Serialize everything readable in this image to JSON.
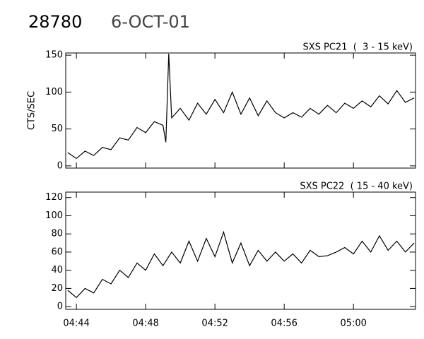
{
  "header": {
    "id": "28780",
    "date": "6-OCT-01"
  },
  "chart_data": [
    {
      "type": "line",
      "ylabel": "CTS/SEC",
      "x": [
        "04:43:30",
        "04:44:00",
        "04:44:30",
        "04:45:00",
        "04:45:30",
        "04:46:00",
        "04:46:30",
        "04:47:00",
        "04:47:30",
        "04:48:00",
        "04:48:30",
        "04:49:00",
        "04:49:10",
        "04:49:20",
        "04:49:30",
        "04:50:00",
        "04:50:30",
        "04:51:00",
        "04:51:30",
        "04:52:00",
        "04:52:30",
        "04:53:00",
        "04:53:30",
        "04:54:00",
        "04:54:30",
        "04:55:00",
        "04:55:30",
        "04:56:00",
        "04:56:30",
        "04:57:00",
        "04:57:30",
        "04:58:00",
        "04:58:30",
        "04:59:00",
        "04:59:30",
        "05:00:00",
        "05:00:30",
        "05:01:00",
        "05:01:30",
        "05:02:00",
        "05:02:30",
        "05:03:00",
        "05:03:30"
      ],
      "series": [
        {
          "name": "SXS PC21  (  3 - 15 keV)",
          "color": "#000000",
          "values": [
            18,
            10,
            20,
            14,
            25,
            22,
            38,
            35,
            52,
            45,
            60,
            55,
            32,
            152,
            65,
            78,
            62,
            85,
            70,
            90,
            72,
            100,
            70,
            92,
            68,
            88,
            72,
            65,
            72,
            66,
            78,
            70,
            82,
            72,
            85,
            78,
            88,
            80,
            95,
            84,
            102,
            86,
            92
          ]
        }
      ],
      "xlim": [
        "04:43:23",
        "05:03:35"
      ],
      "ylim": [
        -3,
        153
      ],
      "yticks": [
        0,
        50,
        100,
        150
      ]
    },
    {
      "type": "line",
      "x": [
        "04:43:30",
        "04:44:00",
        "04:44:30",
        "04:45:00",
        "04:45:30",
        "04:46:00",
        "04:46:30",
        "04:47:00",
        "04:47:30",
        "04:48:00",
        "04:48:30",
        "04:49:00",
        "04:49:30",
        "04:50:00",
        "04:50:30",
        "04:51:00",
        "04:51:30",
        "04:52:00",
        "04:52:30",
        "04:53:00",
        "04:53:30",
        "04:54:00",
        "04:54:30",
        "04:55:00",
        "04:55:30",
        "04:56:00",
        "04:56:30",
        "04:57:00",
        "04:57:30",
        "04:58:00",
        "04:58:30",
        "04:59:00",
        "04:59:30",
        "05:00:00",
        "05:00:30",
        "05:01:00",
        "05:01:30",
        "05:02:00",
        "05:02:30",
        "05:03:00",
        "05:03:30"
      ],
      "series": [
        {
          "name": "SXS PC22  ( 15 - 40 keV)",
          "color": "#000000",
          "values": [
            18,
            10,
            20,
            15,
            30,
            25,
            40,
            32,
            48,
            40,
            58,
            45,
            60,
            48,
            72,
            50,
            75,
            55,
            82,
            48,
            70,
            45,
            62,
            50,
            60,
            50,
            58,
            48,
            62,
            55,
            56,
            60,
            65,
            58,
            72,
            60,
            78,
            62,
            72,
            60,
            70
          ]
        }
      ],
      "xlim": [
        "04:43:23",
        "05:03:35"
      ],
      "xticks": [
        "04:44",
        "04:48",
        "04:52",
        "04:56",
        "05:00"
      ],
      "ylim": [
        -3,
        126
      ],
      "yticks": [
        0,
        20,
        40,
        60,
        80,
        100,
        120
      ]
    }
  ]
}
